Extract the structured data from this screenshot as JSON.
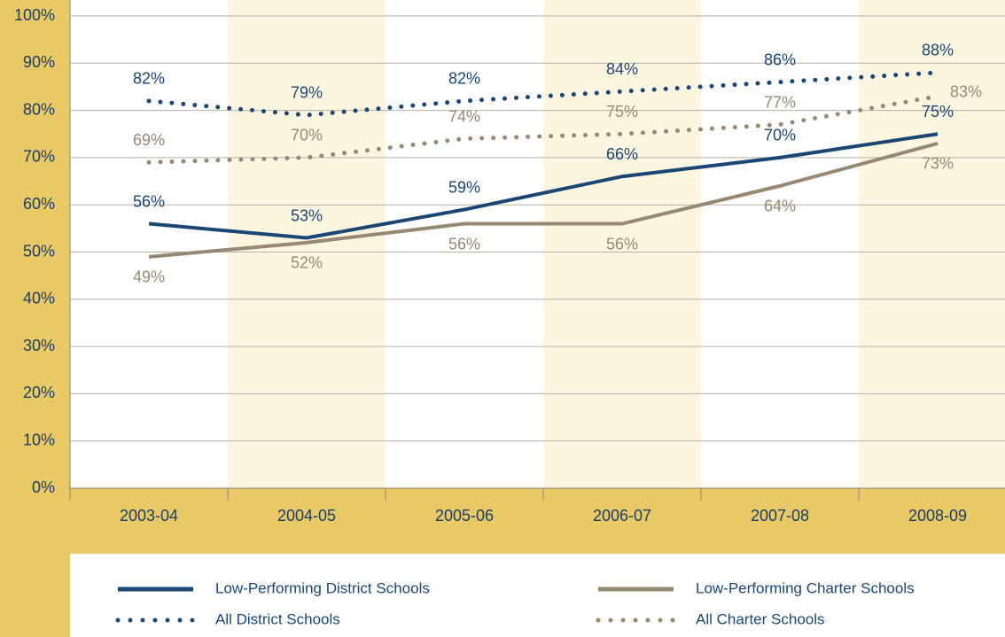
{
  "chart_data": {
    "type": "line",
    "categories": [
      "2003-04",
      "2004-05",
      "2005-06",
      "2006-07",
      "2007-08",
      "2008-09"
    ],
    "series": [
      {
        "name": "Low-Performing District Schools",
        "color": "#1b4673",
        "line_style": "solid",
        "values": [
          56,
          53,
          59,
          66,
          70,
          75
        ],
        "value_labels": [
          "56%",
          "53%",
          "59%",
          "66%",
          "70%",
          "75%"
        ]
      },
      {
        "name": "Low-Performing Charter Schools",
        "color": "#978873",
        "line_style": "solid",
        "values": [
          49,
          52,
          56,
          56,
          64,
          73
        ],
        "value_labels": [
          "49%",
          "52%",
          "56%",
          "56%",
          "64%",
          "73%"
        ]
      },
      {
        "name": "All District Schools",
        "color": "#1b4673",
        "line_style": "dotted",
        "values": [
          82,
          79,
          82,
          84,
          86,
          88
        ],
        "value_labels": [
          "82%",
          "79%",
          "82%",
          "84%",
          "86%",
          "88%"
        ]
      },
      {
        "name": "All Charter Schools",
        "color": "#978873",
        "line_style": "dotted",
        "values": [
          69,
          70,
          74,
          75,
          77,
          83
        ],
        "value_labels": [
          "69%",
          "70%",
          "74%",
          "75%",
          "77%",
          "83%"
        ]
      }
    ],
    "ylim": [
      0,
      100
    ],
    "yticks": [
      {
        "value": 0,
        "label": "0%"
      },
      {
        "value": 10,
        "label": "10%"
      },
      {
        "value": 20,
        "label": "20%"
      },
      {
        "value": 30,
        "label": "30%"
      },
      {
        "value": 40,
        "label": "40%"
      },
      {
        "value": 50,
        "label": "50%"
      },
      {
        "value": 60,
        "label": "60%"
      },
      {
        "value": 70,
        "label": "70%"
      },
      {
        "value": 80,
        "label": "80%"
      },
      {
        "value": 90,
        "label": "90%"
      },
      {
        "value": 100,
        "label": "100%"
      }
    ],
    "grid": true
  }
}
